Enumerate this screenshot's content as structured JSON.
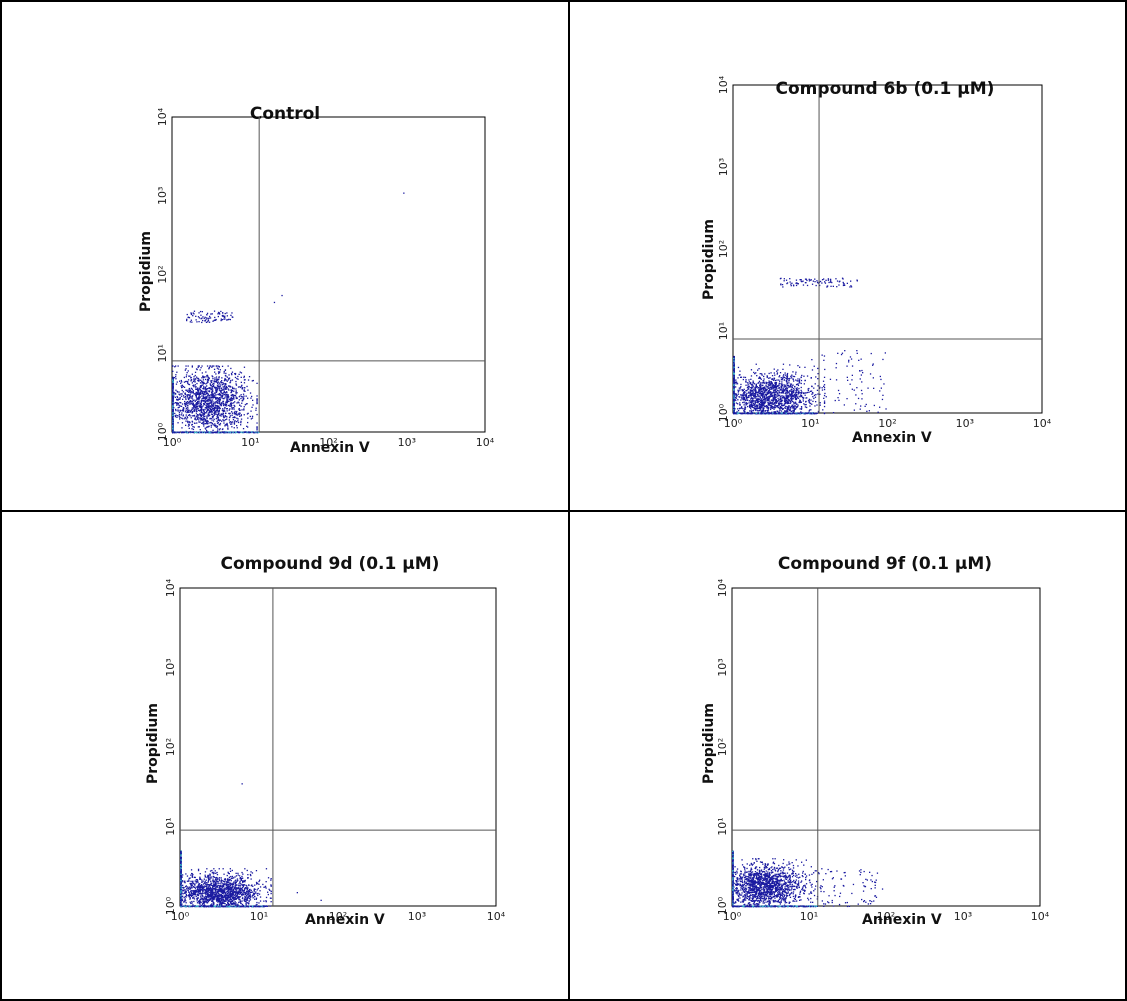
{
  "figure": {
    "colors": {
      "border": "#000000",
      "gate": "#555555",
      "dots": "#1a1aa0",
      "dots_light": "#3ab5c8"
    }
  },
  "chart_data": [
    {
      "type": "scatter",
      "title": "Control",
      "xlabel": "Annexin V",
      "ylabel": "Propidium",
      "x_scale": "log",
      "y_scale": "log",
      "xlim": [
        1,
        10000
      ],
      "ylim": [
        1,
        10000
      ],
      "x_ticks": [
        "10⁰",
        "10¹",
        "10²",
        "10³",
        "10⁴"
      ],
      "y_ticks": [
        "10⁰",
        "10¹",
        "10²",
        "10³",
        "10⁴"
      ],
      "gate": {
        "x": 13,
        "y": 8
      },
      "grid": false,
      "point_count_estimate": 1800,
      "populations": [
        {
          "region": "lower-left dense cluster",
          "x_range": [
            1,
            12
          ],
          "y_range": [
            1,
            7
          ],
          "center": [
            3,
            2.5
          ]
        },
        {
          "region": "upper-left band",
          "x_range": [
            1.5,
            6
          ],
          "y_range": [
            25,
            35
          ]
        },
        {
          "region": "outliers",
          "points": [
            [
              25,
              55
            ],
            [
              20,
              45
            ],
            [
              900,
              1100
            ]
          ]
        }
      ]
    },
    {
      "type": "scatter",
      "title": "Compound 6b (0.1 µM)",
      "xlabel": "Annexin V",
      "ylabel": "Propidium",
      "x_scale": "log",
      "y_scale": "log",
      "xlim": [
        1,
        10000
      ],
      "ylim": [
        1,
        10000
      ],
      "x_ticks": [
        "10⁰",
        "10¹",
        "10²",
        "10³",
        "10⁴"
      ],
      "y_ticks": [
        "10⁰",
        "10¹",
        "10²",
        "10³",
        "10⁴"
      ],
      "gate": {
        "x": 13,
        "y": 8
      },
      "grid": false,
      "point_count_estimate": 1800,
      "populations": [
        {
          "region": "lower-left dense cluster",
          "x_range": [
            1,
            15
          ],
          "y_range": [
            1,
            4
          ],
          "center": [
            3,
            1.6
          ]
        },
        {
          "region": "upper band",
          "x_range": [
            4,
            40
          ],
          "y_range": [
            35,
            45
          ]
        },
        {
          "region": "scattered",
          "x_range": [
            10,
            100
          ],
          "y_range": [
            1,
            6
          ]
        }
      ]
    },
    {
      "type": "scatter",
      "title": "Compound 9d (0.1 µM)",
      "xlabel": "Annexin V",
      "ylabel": "Propidium",
      "x_scale": "log",
      "y_scale": "log",
      "xlim": [
        1,
        10000
      ],
      "ylim": [
        1,
        10000
      ],
      "x_ticks": [
        "10⁰",
        "10¹",
        "10²",
        "10³",
        "10⁴"
      ],
      "y_ticks": [
        "10⁰",
        "10¹",
        "10²",
        "10³",
        "10⁴"
      ],
      "gate": {
        "x": 15,
        "y": 9
      },
      "grid": false,
      "point_count_estimate": 1800,
      "populations": [
        {
          "region": "lower-left dense cluster",
          "x_range": [
            1,
            14
          ],
          "y_range": [
            1,
            3
          ],
          "center": [
            3,
            1.5
          ]
        },
        {
          "region": "outliers",
          "points": [
            [
              6,
              35
            ],
            [
              30,
              1.5
            ],
            [
              60,
              1.2
            ]
          ]
        }
      ]
    },
    {
      "type": "scatter",
      "title": "Compound 9f (0.1 µM)",
      "xlabel": "Annexin V",
      "ylabel": "Propidium",
      "x_scale": "log",
      "y_scale": "log",
      "xlim": [
        1,
        10000
      ],
      "ylim": [
        1,
        10000
      ],
      "x_ticks": [
        "10⁰",
        "10¹",
        "10²",
        "10³",
        "10⁴"
      ],
      "y_ticks": [
        "10⁰",
        "10¹",
        "10²",
        "10³",
        "10⁴"
      ],
      "gate": {
        "x": 13,
        "y": 9
      },
      "grid": false,
      "point_count_estimate": 1800,
      "populations": [
        {
          "region": "lower-left dense cluster",
          "x_range": [
            1,
            14
          ],
          "y_range": [
            1,
            4
          ],
          "center": [
            2.5,
            1.8
          ]
        },
        {
          "region": "scattered",
          "x_range": [
            10,
            90
          ],
          "y_range": [
            1,
            3
          ]
        }
      ]
    }
  ]
}
